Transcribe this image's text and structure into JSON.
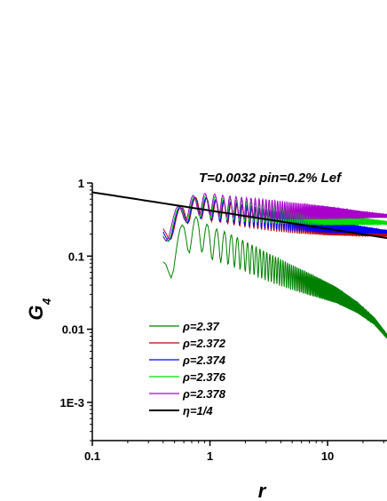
{
  "chart_data": {
    "type": "line",
    "title": "T=0.0032  pin=0.2% Lef",
    "xlabel": "r",
    "ylabel_main": "G",
    "ylabel_sub": "4",
    "xscale": "log",
    "yscale": "log",
    "xlim": [
      0.1,
      32
    ],
    "ylim": [
      0.0003,
      1
    ],
    "x_ticks": [
      {
        "value": 0.1,
        "label": "0.1"
      },
      {
        "value": 1,
        "label": "1"
      },
      {
        "value": 10,
        "label": "10"
      }
    ],
    "y_ticks": [
      {
        "value": 1,
        "label": "1"
      },
      {
        "value": 0.1,
        "label": "0.1"
      },
      {
        "value": 0.01,
        "label": "0.01"
      },
      {
        "value": 0.001,
        "label": "1E-3"
      }
    ],
    "legend_position": "bottom-left",
    "series": [
      {
        "name": "ρ=2.37",
        "color": "#008000",
        "amplitude": 0.5,
        "x_end": 32,
        "points": [
          [
            0.4,
            0.06
          ],
          [
            0.5,
            0.12
          ],
          [
            0.6,
            0.2
          ],
          [
            0.8,
            0.24
          ],
          [
            1.0,
            0.17
          ],
          [
            1.3,
            0.15
          ],
          [
            1.6,
            0.13
          ],
          [
            2,
            0.11
          ],
          [
            3,
            0.08
          ],
          [
            5,
            0.055
          ],
          [
            8,
            0.04
          ],
          [
            12,
            0.03
          ],
          [
            18,
            0.02
          ],
          [
            25,
            0.013
          ],
          [
            32,
            0.008
          ]
        ]
      },
      {
        "name": "ρ=2.372",
        "color": "#c00000",
        "amplitude": 0.35,
        "x_end": 32,
        "points": [
          [
            0.4,
            0.2
          ],
          [
            0.6,
            0.4
          ],
          [
            0.8,
            0.5
          ],
          [
            1,
            0.45
          ],
          [
            1.5,
            0.4
          ],
          [
            2,
            0.36
          ],
          [
            3,
            0.32
          ],
          [
            5,
            0.28
          ],
          [
            10,
            0.24
          ],
          [
            20,
            0.21
          ],
          [
            32,
            0.195
          ]
        ]
      },
      {
        "name": "ρ=2.374",
        "color": "#0000ff",
        "amplitude": 0.35,
        "x_end": 32,
        "points": [
          [
            0.4,
            0.2
          ],
          [
            0.6,
            0.4
          ],
          [
            0.8,
            0.5
          ],
          [
            1,
            0.46
          ],
          [
            1.5,
            0.42
          ],
          [
            2,
            0.38
          ],
          [
            3,
            0.34
          ],
          [
            5,
            0.3
          ],
          [
            10,
            0.26
          ],
          [
            20,
            0.23
          ],
          [
            32,
            0.215
          ]
        ]
      },
      {
        "name": "ρ=2.376",
        "color": "#00dd00",
        "amplitude": 0.35,
        "x_end": 32,
        "points": [
          [
            0.4,
            0.2
          ],
          [
            0.6,
            0.42
          ],
          [
            0.8,
            0.52
          ],
          [
            1,
            0.5
          ],
          [
            1.5,
            0.46
          ],
          [
            2,
            0.43
          ],
          [
            3,
            0.4
          ],
          [
            5,
            0.37
          ],
          [
            10,
            0.33
          ],
          [
            20,
            0.3
          ],
          [
            32,
            0.285
          ]
        ]
      },
      {
        "name": "ρ=2.378",
        "color": "#aa00cc",
        "amplitude": 0.35,
        "x_end": 32,
        "points": [
          [
            0.4,
            0.22
          ],
          [
            0.6,
            0.44
          ],
          [
            0.8,
            0.55
          ],
          [
            1,
            0.54
          ],
          [
            1.5,
            0.5
          ],
          [
            2,
            0.48
          ],
          [
            3,
            0.46
          ],
          [
            5,
            0.43
          ],
          [
            10,
            0.4
          ],
          [
            20,
            0.37
          ],
          [
            32,
            0.355
          ]
        ]
      },
      {
        "name": "η=1/4",
        "color": "#000000",
        "kind": "power_law",
        "prefactor": 0.42,
        "exponent": -0.25,
        "x_start": 0.1,
        "x_end": 32
      }
    ]
  }
}
